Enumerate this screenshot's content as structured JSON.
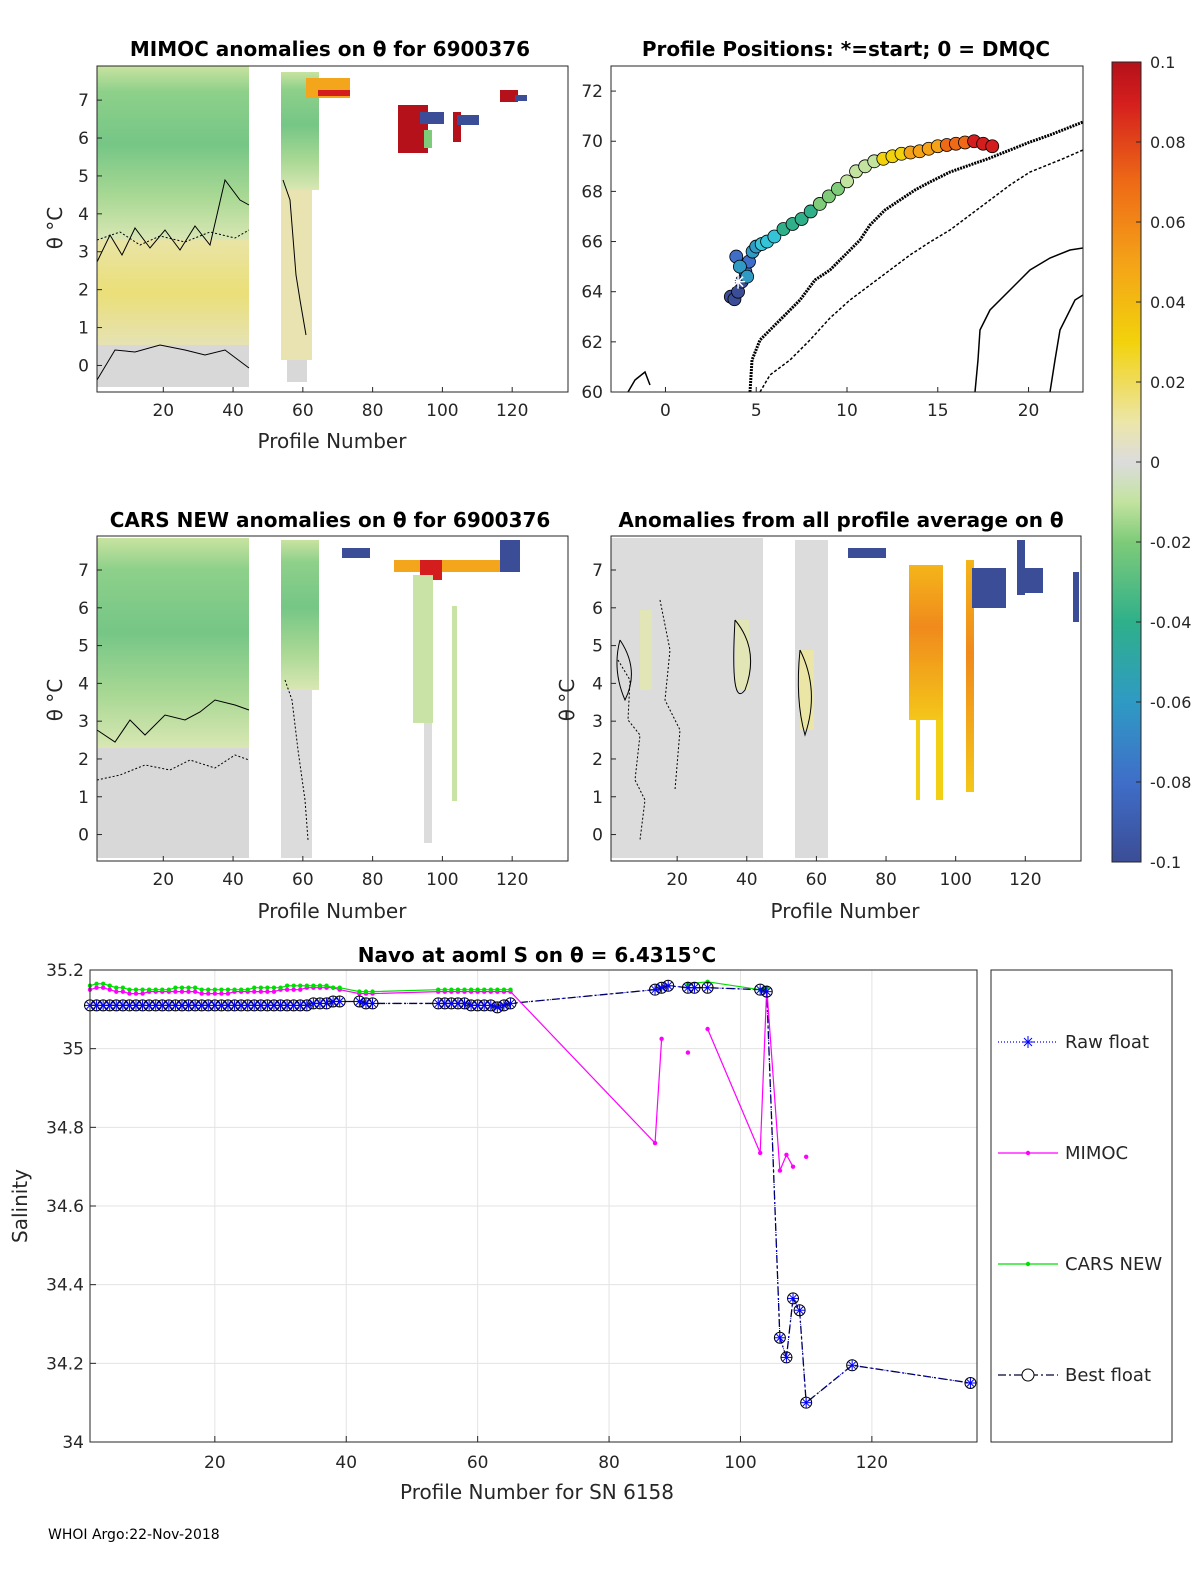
{
  "footer": "WHOI Argo:22-Nov-2018",
  "colors": {
    "raw_float": "#0000ff",
    "mimoc": "#ff00ff",
    "cars": "#00e000",
    "best": "#000033",
    "map_land": "#000000"
  },
  "chart_data": [
    {
      "id": "mimoc_anom",
      "type": "heatmap",
      "title": "MIMOC anomalies on θ  for 6900376",
      "xlabel": "Profile Number",
      "ylabel": "θ °C",
      "xlim": [
        1,
        136
      ],
      "ylim": [
        -0.7,
        7.9
      ],
      "xticks": [
        "20",
        "40",
        "60",
        "80",
        "100",
        "120"
      ],
      "yticks": [
        "0",
        "1",
        "2",
        "3",
        "4",
        "5",
        "6",
        "7"
      ],
      "profile_columns": [
        [
          1,
          44
        ],
        [
          54,
          64
        ],
        [
          88,
          96
        ],
        [
          103,
          110
        ],
        [
          118,
          124
        ]
      ]
    },
    {
      "id": "profile_positions",
      "type": "scatter",
      "title": "Profile Positions: *=start; 0 = DMQC",
      "xlim": [
        -3,
        23
      ],
      "ylim": [
        60,
        73
      ],
      "xticks": [
        "0",
        "5",
        "10",
        "15",
        "20"
      ],
      "yticks": [
        "60",
        "62",
        "64",
        "66",
        "68",
        "70",
        "72"
      ],
      "track": {
        "lon": [
          3.6,
          3.8,
          4.0,
          4.2,
          4.4,
          4.6,
          3.9,
          4.1,
          4.5,
          4.8,
          5.0,
          5.3,
          5.6,
          6.0,
          6.5,
          7.0,
          7.5,
          8.0,
          8.5,
          9.0,
          9.5,
          10.0,
          10.5,
          11.0,
          11.5,
          12.0,
          12.5,
          13.0,
          13.5,
          14.0,
          14.5,
          15.0,
          15.5,
          16.0,
          16.5,
          17.0,
          17.5,
          18.0
        ],
        "lat": [
          63.8,
          63.7,
          64.0,
          64.4,
          64.8,
          65.2,
          65.4,
          65.0,
          64.6,
          65.6,
          65.8,
          65.9,
          66.0,
          66.2,
          66.5,
          66.7,
          66.9,
          67.2,
          67.5,
          67.8,
          68.1,
          68.4,
          68.8,
          69.0,
          69.2,
          69.3,
          69.4,
          69.5,
          69.55,
          69.6,
          69.7,
          69.8,
          69.85,
          69.9,
          69.95,
          70.0,
          69.9,
          69.8
        ]
      },
      "start": {
        "lon": 4.0,
        "lat": 64.4
      }
    },
    {
      "id": "colorbar",
      "type": "heatmap",
      "range": [
        -0.1,
        0.1
      ],
      "ticks": [
        "0.1",
        "0.08",
        "0.06",
        "0.04",
        "0.02",
        "0",
        "-0.02",
        "-0.04",
        "-0.06",
        "-0.08",
        "-0.1"
      ]
    },
    {
      "id": "cars_anom",
      "type": "heatmap",
      "title": "CARS NEW anomalies on θ for 6900376",
      "xlabel": "Profile Number",
      "ylabel": "θ °C",
      "xlim": [
        1,
        136
      ],
      "ylim": [
        -0.7,
        7.9
      ],
      "xticks": [
        "20",
        "40",
        "60",
        "80",
        "100",
        "120"
      ],
      "yticks": [
        "0",
        "1",
        "2",
        "3",
        "4",
        "5",
        "6",
        "7"
      ]
    },
    {
      "id": "mean_anom",
      "type": "heatmap",
      "title": "Anomalies from all profile average on θ",
      "xlabel": "Profile Number",
      "ylabel": "θ °C",
      "xlim": [
        1,
        136
      ],
      "ylim": [
        -0.7,
        7.9
      ],
      "xticks": [
        "20",
        "40",
        "60",
        "80",
        "100",
        "120"
      ],
      "yticks": [
        "0",
        "1",
        "2",
        "3",
        "4",
        "5",
        "6",
        "7"
      ]
    },
    {
      "id": "salinity",
      "type": "line",
      "title": "Navo at aoml S on θ = 6.4315°C",
      "xlabel": "Profile Number for SN 6158",
      "ylabel": "Salinity",
      "xlim": [
        1,
        136
      ],
      "ylim": [
        34,
        35.2
      ],
      "grid": true,
      "xticks": [
        "20",
        "40",
        "60",
        "80",
        "100",
        "120"
      ],
      "yticks": [
        "34",
        "34.2",
        "34.4",
        "34.6",
        "34.8",
        "35",
        "35.2"
      ],
      "legend_position": "right",
      "series": [
        {
          "name": "Raw float",
          "x": [
            1,
            2,
            3,
            4,
            5,
            6,
            7,
            8,
            9,
            10,
            11,
            12,
            13,
            14,
            15,
            16,
            17,
            18,
            19,
            20,
            21,
            22,
            23,
            24,
            25,
            26,
            27,
            28,
            29,
            30,
            31,
            32,
            33,
            34,
            35,
            36,
            37,
            38,
            39,
            42,
            43,
            44,
            54,
            55,
            56,
            57,
            58,
            59,
            60,
            61,
            62,
            63,
            64,
            65,
            87,
            88,
            89,
            92,
            93,
            95,
            103,
            104,
            106,
            107,
            108,
            109,
            110,
            117,
            135
          ],
          "y": [
            35.11,
            35.11,
            35.11,
            35.11,
            35.11,
            35.11,
            35.11,
            35.11,
            35.11,
            35.11,
            35.11,
            35.11,
            35.11,
            35.11,
            35.11,
            35.11,
            35.11,
            35.11,
            35.11,
            35.11,
            35.11,
            35.11,
            35.11,
            35.11,
            35.11,
            35.11,
            35.11,
            35.11,
            35.11,
            35.11,
            35.11,
            35.11,
            35.11,
            35.11,
            35.115,
            35.115,
            35.115,
            35.12,
            35.12,
            35.12,
            35.115,
            35.115,
            35.115,
            35.115,
            35.115,
            35.115,
            35.115,
            35.11,
            35.11,
            35.11,
            35.11,
            35.105,
            35.11,
            35.115,
            35.15,
            35.155,
            35.16,
            35.155,
            35.155,
            35.155,
            35.15,
            35.145,
            34.265,
            34.215,
            34.365,
            34.335,
            34.1,
            34.195,
            34.15
          ]
        },
        {
          "name": "MIMOC",
          "segments": [
            {
              "x": [
                1,
                2,
                3,
                4,
                5,
                6,
                7,
                8,
                9,
                10,
                11,
                12,
                13,
                14,
                15,
                16,
                17,
                18,
                19,
                20,
                21,
                22,
                23,
                24,
                25,
                26,
                27,
                28,
                29,
                30,
                31,
                32,
                33,
                34,
                35,
                36,
                37,
                38,
                39,
                42,
                43,
                44,
                54,
                55,
                56,
                57,
                58,
                59,
                60,
                61,
                62,
                63,
                64,
                65,
                87,
                88
              ],
              "y": [
                35.15,
                35.155,
                35.155,
                35.15,
                35.145,
                35.145,
                35.14,
                35.14,
                35.14,
                35.145,
                35.145,
                35.145,
                35.145,
                35.145,
                35.145,
                35.145,
                35.145,
                35.14,
                35.14,
                35.14,
                35.14,
                35.14,
                35.145,
                35.145,
                35.145,
                35.145,
                35.145,
                35.145,
                35.145,
                35.15,
                35.15,
                35.15,
                35.15,
                35.155,
                35.155,
                35.155,
                35.155,
                35.155,
                35.15,
                35.14,
                35.14,
                35.14,
                35.145,
                35.145,
                35.145,
                35.145,
                35.145,
                35.145,
                35.145,
                35.145,
                35.145,
                35.145,
                35.145,
                35.145,
                34.76,
                35.025
              ]
            },
            {
              "x": [
                92
              ],
              "y": [
                34.99
              ]
            },
            {
              "x": [
                95,
                103,
                104,
                106,
                107,
                108
              ],
              "y": [
                35.05,
                34.735,
                35.155,
                34.69,
                34.73,
                34.7
              ]
            },
            {
              "x": [
                110
              ],
              "y": [
                34.725
              ]
            }
          ]
        },
        {
          "name": "CARS NEW",
          "x": [
            1,
            2,
            3,
            4,
            5,
            6,
            7,
            8,
            9,
            10,
            11,
            12,
            13,
            14,
            15,
            16,
            17,
            18,
            19,
            20,
            21,
            22,
            23,
            24,
            25,
            26,
            27,
            28,
            29,
            30,
            31,
            32,
            33,
            34,
            35,
            36,
            37,
            38,
            39,
            42,
            43,
            44,
            54,
            55,
            56,
            57,
            58,
            59,
            60,
            61,
            62,
            63,
            64,
            65,
            92,
            95,
            103,
            104
          ],
          "y": [
            35.16,
            35.165,
            35.165,
            35.16,
            35.155,
            35.155,
            35.15,
            35.15,
            35.15,
            35.15,
            35.15,
            35.15,
            35.15,
            35.155,
            35.155,
            35.155,
            35.155,
            35.15,
            35.15,
            35.15,
            35.15,
            35.15,
            35.15,
            35.15,
            35.15,
            35.155,
            35.155,
            35.155,
            35.155,
            35.155,
            35.16,
            35.16,
            35.16,
            35.16,
            35.16,
            35.16,
            35.16,
            35.155,
            35.155,
            35.145,
            35.145,
            35.145,
            35.15,
            35.15,
            35.15,
            35.15,
            35.15,
            35.15,
            35.15,
            35.15,
            35.15,
            35.15,
            35.15,
            35.15,
            35.165,
            35.17,
            35.15,
            35.155
          ]
        },
        {
          "name": "Best float",
          "x": [
            1,
            2,
            3,
            4,
            5,
            6,
            7,
            8,
            9,
            10,
            11,
            12,
            13,
            14,
            15,
            16,
            17,
            18,
            19,
            20,
            21,
            22,
            23,
            24,
            25,
            26,
            27,
            28,
            29,
            30,
            31,
            32,
            33,
            34,
            35,
            36,
            37,
            38,
            39,
            42,
            43,
            44,
            54,
            55,
            56,
            57,
            58,
            59,
            60,
            61,
            62,
            63,
            64,
            65,
            87,
            88,
            89,
            92,
            93,
            95,
            103,
            104,
            106,
            107,
            108,
            109,
            110,
            117,
            135
          ],
          "y": [
            35.11,
            35.11,
            35.11,
            35.11,
            35.11,
            35.11,
            35.11,
            35.11,
            35.11,
            35.11,
            35.11,
            35.11,
            35.11,
            35.11,
            35.11,
            35.11,
            35.11,
            35.11,
            35.11,
            35.11,
            35.11,
            35.11,
            35.11,
            35.11,
            35.11,
            35.11,
            35.11,
            35.11,
            35.11,
            35.11,
            35.11,
            35.11,
            35.11,
            35.11,
            35.115,
            35.115,
            35.115,
            35.12,
            35.12,
            35.12,
            35.115,
            35.115,
            35.115,
            35.115,
            35.115,
            35.115,
            35.115,
            35.11,
            35.11,
            35.11,
            35.11,
            35.105,
            35.11,
            35.115,
            35.15,
            35.155,
            35.16,
            35.155,
            35.155,
            35.155,
            35.15,
            35.145,
            34.265,
            34.215,
            34.365,
            34.335,
            34.1,
            34.195,
            34.15
          ]
        }
      ]
    }
  ]
}
